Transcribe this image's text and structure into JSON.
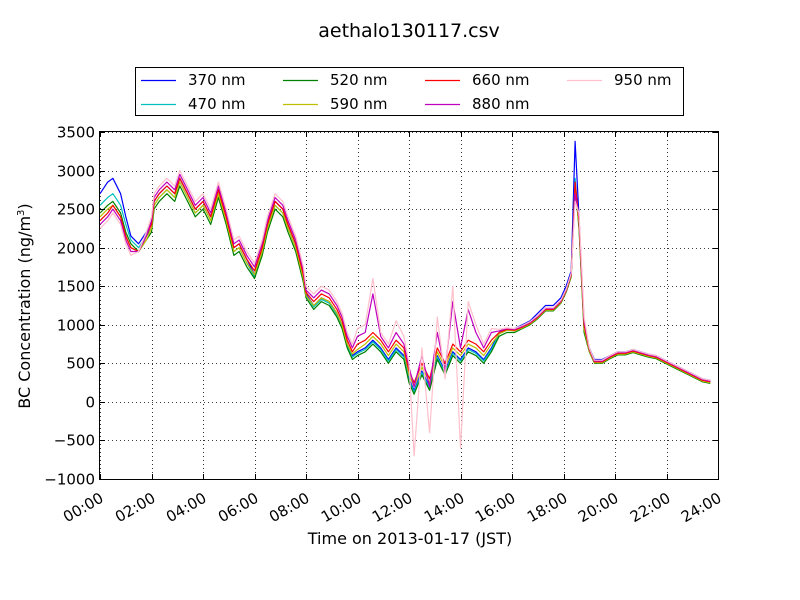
{
  "chart_data": {
    "type": "line",
    "title": "aethalo130117.csv",
    "xlabel": "Time on 2013-01-17 (JST)",
    "ylabel": "BC Concentration (ng/m",
    "ylabel_sup": "3",
    "ylabel_end": ")",
    "xlim": [
      0,
      24
    ],
    "ylim": [
      -1000,
      3500
    ],
    "x_ticks": [
      0,
      2,
      4,
      6,
      8,
      10,
      12,
      14,
      16,
      18,
      20,
      22,
      24
    ],
    "x_tick_labels": [
      "00:00",
      "02:00",
      "04:00",
      "06:00",
      "08:00",
      "10:00",
      "12:00",
      "14:00",
      "16:00",
      "18:00",
      "20:00",
      "22:00",
      "24:00"
    ],
    "y_ticks": [
      -1000,
      -500,
      0,
      500,
      1000,
      1500,
      2000,
      2500,
      3000,
      3500
    ],
    "y_tick_labels": [
      "−1000",
      "−500",
      "0",
      "500",
      "1000",
      "1500",
      "2000",
      "2500",
      "3000",
      "3500"
    ],
    "grid": true,
    "legend_position": "top",
    "x": [
      0,
      0.3,
      0.5,
      0.8,
      1.0,
      1.2,
      1.5,
      1.8,
      2.0,
      2.1,
      2.3,
      2.6,
      2.9,
      3.1,
      3.4,
      3.7,
      4.0,
      4.3,
      4.6,
      4.9,
      5.2,
      5.4,
      5.7,
      6.0,
      6.3,
      6.5,
      6.8,
      7.1,
      7.3,
      7.6,
      7.9,
      8.0,
      8.3,
      8.6,
      8.9,
      9.2,
      9.4,
      9.6,
      9.8,
      10.0,
      10.3,
      10.6,
      10.9,
      11.2,
      11.5,
      11.8,
      12.0,
      12.2,
      12.5,
      12.8,
      13.1,
      13.4,
      13.7,
      14.0,
      14.3,
      14.6,
      14.9,
      15.2,
      15.5,
      15.8,
      16.1,
      16.4,
      16.7,
      17.0,
      17.3,
      17.6,
      17.9,
      18.1,
      18.3,
      18.45,
      18.6,
      18.8,
      19.0,
      19.2,
      19.5,
      19.8,
      20.1,
      20.4,
      20.7,
      21.0,
      21.3,
      21.6,
      21.9,
      22.2,
      22.5,
      22.8,
      23.1,
      23.4,
      23.7
    ],
    "series": [
      {
        "name": "370 nm",
        "color": "#0000ff",
        "values": [
          2700,
          2850,
          2900,
          2700,
          2400,
          2150,
          2050,
          2200,
          2300,
          2600,
          2700,
          2800,
          2700,
          2900,
          2700,
          2500,
          2600,
          2400,
          2750,
          2400,
          2000,
          2050,
          1850,
          1650,
          2000,
          2300,
          2600,
          2500,
          2300,
          2050,
          1650,
          1400,
          1250,
          1350,
          1300,
          1150,
          1000,
          750,
          600,
          650,
          700,
          800,
          700,
          550,
          700,
          600,
          300,
          150,
          400,
          200,
          600,
          400,
          650,
          550,
          700,
          650,
          550,
          700,
          900,
          950,
          950,
          1000,
          1050,
          1150,
          1250,
          1250,
          1350,
          1500,
          1700,
          3380,
          2400,
          1000,
          700,
          550,
          550,
          600,
          650,
          650,
          680,
          650,
          620,
          600,
          550,
          500,
          450,
          400,
          350,
          300,
          280
        ]
      },
      {
        "name": "470 nm",
        "color": "#00bfbf",
        "values": [
          2550,
          2650,
          2700,
          2550,
          2300,
          2100,
          2000,
          2150,
          2250,
          2550,
          2650,
          2750,
          2650,
          2850,
          2650,
          2450,
          2550,
          2350,
          2700,
          2350,
          1950,
          2000,
          1800,
          1620,
          1950,
          2250,
          2550,
          2450,
          2250,
          2000,
          1600,
          1380,
          1230,
          1330,
          1280,
          1130,
          980,
          730,
          580,
          630,
          680,
          780,
          680,
          530,
          680,
          580,
          280,
          130,
          380,
          180,
          580,
          380,
          630,
          530,
          680,
          630,
          530,
          680,
          880,
          930,
          930,
          980,
          1020,
          1100,
          1200,
          1200,
          1300,
          1450,
          1650,
          2900,
          2300,
          950,
          680,
          530,
          530,
          580,
          630,
          630,
          660,
          630,
          600,
          580,
          530,
          480,
          430,
          380,
          330,
          280,
          260
        ]
      },
      {
        "name": "520 nm",
        "color": "#008000",
        "values": [
          2450,
          2550,
          2600,
          2450,
          2200,
          2050,
          1950,
          2100,
          2200,
          2500,
          2600,
          2700,
          2600,
          2800,
          2600,
          2400,
          2500,
          2300,
          2650,
          2300,
          1900,
          1950,
          1750,
          1600,
          1900,
          2200,
          2500,
          2400,
          2200,
          1950,
          1550,
          1350,
          1200,
          1300,
          1250,
          1100,
          950,
          700,
          550,
          600,
          650,
          750,
          650,
          500,
          650,
          550,
          250,
          100,
          350,
          150,
          550,
          350,
          600,
          500,
          650,
          600,
          500,
          650,
          850,
          900,
          900,
          950,
          1000,
          1080,
          1180,
          1180,
          1280,
          1420,
          1620,
          2800,
          2250,
          900,
          650,
          500,
          500,
          560,
          610,
          610,
          640,
          610,
          580,
          560,
          510,
          460,
          410,
          360,
          310,
          260,
          240
        ]
      },
      {
        "name": "590 nm",
        "color": "#bfbf00",
        "values": [
          2400,
          2500,
          2550,
          2400,
          2150,
          2000,
          1950,
          2100,
          2250,
          2550,
          2650,
          2750,
          2650,
          2850,
          2650,
          2450,
          2550,
          2350,
          2700,
          2350,
          1950,
          2000,
          1800,
          1650,
          1950,
          2250,
          2550,
          2450,
          2250,
          2000,
          1600,
          1380,
          1250,
          1350,
          1300,
          1150,
          1000,
          750,
          620,
          680,
          750,
          850,
          750,
          600,
          750,
          650,
          350,
          200,
          450,
          250,
          650,
          450,
          700,
          600,
          750,
          700,
          600,
          750,
          880,
          930,
          920,
          960,
          1010,
          1090,
          1190,
          1190,
          1290,
          1430,
          1630,
          2750,
          2300,
          950,
          660,
          510,
          510,
          570,
          620,
          620,
          650,
          620,
          590,
          570,
          520,
          470,
          420,
          370,
          320,
          270,
          250
        ]
      },
      {
        "name": "660 nm",
        "color": "#ff0000",
        "values": [
          2350,
          2450,
          2550,
          2400,
          2150,
          2000,
          1950,
          2150,
          2300,
          2600,
          2700,
          2800,
          2700,
          2900,
          2700,
          2500,
          2600,
          2400,
          2750,
          2400,
          2000,
          2050,
          1850,
          1700,
          2000,
          2300,
          2600,
          2500,
          2300,
          2050,
          1650,
          1420,
          1300,
          1400,
          1350,
          1200,
          1050,
          800,
          650,
          750,
          800,
          900,
          800,
          650,
          800,
          700,
          400,
          250,
          500,
          300,
          700,
          500,
          750,
          650,
          800,
          750,
          650,
          800,
          900,
          940,
          930,
          970,
          1020,
          1100,
          1200,
          1200,
          1300,
          1440,
          1650,
          2850,
          2350,
          1000,
          680,
          520,
          520,
          580,
          630,
          630,
          660,
          630,
          600,
          580,
          530,
          480,
          430,
          380,
          330,
          280,
          260
        ]
      },
      {
        "name": "880 nm",
        "color": "#bf00bf",
        "values": [
          2300,
          2400,
          2500,
          2350,
          2100,
          1950,
          1950,
          2150,
          2350,
          2650,
          2750,
          2850,
          2750,
          2950,
          2750,
          2550,
          2650,
          2450,
          2800,
          2450,
          2050,
          2100,
          1900,
          1750,
          2050,
          2350,
          2650,
          2550,
          2350,
          2100,
          1700,
          1450,
          1350,
          1450,
          1400,
          1250,
          1100,
          850,
          700,
          850,
          900,
          1400,
          850,
          700,
          900,
          750,
          450,
          200,
          600,
          200,
          900,
          400,
          1300,
          700,
          1200,
          900,
          700,
          900,
          920,
          950,
          940,
          980,
          1030,
          1110,
          1210,
          1210,
          1310,
          1450,
          1660,
          2700,
          2400,
          1050,
          690,
          530,
          530,
          590,
          640,
          640,
          670,
          640,
          610,
          590,
          540,
          490,
          440,
          390,
          340,
          290,
          270
        ]
      },
      {
        "name": "950 nm",
        "color": "#ffc0cb",
        "values": [
          2250,
          2350,
          2450,
          2300,
          2050,
          1900,
          1950,
          2200,
          2400,
          2700,
          2800,
          2900,
          2800,
          3000,
          2800,
          2600,
          2700,
          2500,
          2850,
          2500,
          2100,
          2150,
          1950,
          1800,
          2100,
          2400,
          2700,
          2600,
          2400,
          2150,
          1750,
          1500,
          1400,
          1500,
          1450,
          1300,
          1150,
          900,
          750,
          950,
          1000,
          1600,
          900,
          750,
          1050,
          850,
          500,
          -700,
          700,
          -400,
          1100,
          300,
          1500,
          -600,
          1300,
          1000,
          750,
          950,
          940,
          960,
          950,
          990,
          1040,
          1120,
          1220,
          1220,
          1320,
          1460,
          1670,
          2600,
          2450,
          1100,
          700,
          540,
          540,
          600,
          650,
          650,
          680,
          650,
          620,
          600,
          550,
          500,
          450,
          400,
          350,
          300,
          280
        ]
      }
    ]
  }
}
